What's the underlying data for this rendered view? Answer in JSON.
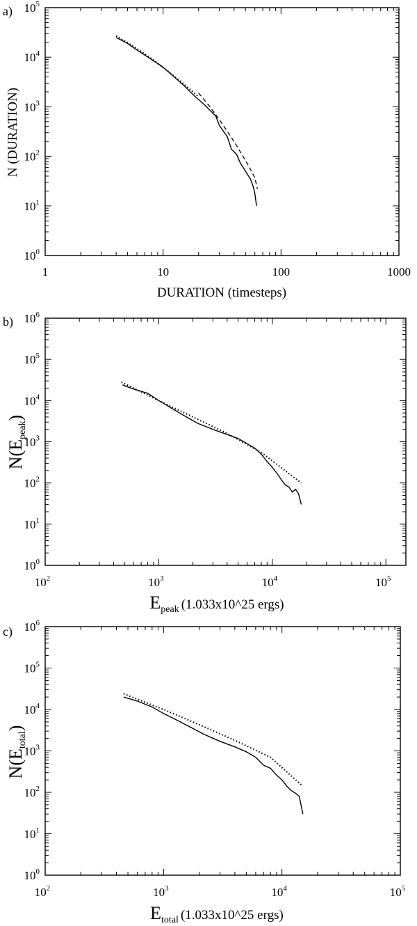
{
  "chart_data": [
    {
      "type": "line",
      "panel_label": "a)",
      "xscale": "log",
      "yscale": "log",
      "xlim": [
        1,
        1000
      ],
      "ylim": [
        1,
        100000
      ],
      "x_ticks": [
        1,
        10,
        100,
        1000
      ],
      "x_tick_labels": [
        "1",
        "10",
        "100",
        "1000"
      ],
      "y_tick_exponents": [
        "0",
        "1",
        "2",
        "3",
        "4",
        "5"
      ],
      "xlabel": "DURATION (timesteps)",
      "ylabel": "N (DURATION)",
      "series": [
        {
          "style": "solid",
          "x": [
            4,
            5,
            6,
            8,
            10,
            12,
            15,
            18,
            20,
            22,
            25,
            28,
            30,
            35,
            38,
            42,
            45,
            50,
            55,
            58,
            60,
            62
          ],
          "y": [
            25000,
            19000,
            14000,
            9000,
            6300,
            4300,
            2700,
            1750,
            1400,
            1150,
            850,
            650,
            420,
            250,
            140,
            110,
            75,
            50,
            35,
            25,
            18,
            10
          ]
        },
        {
          "style": "dotted",
          "x": [
            4,
            6,
            8,
            10,
            14,
            20
          ],
          "y": [
            27000,
            15000,
            9300,
            6200,
            3300,
            1600
          ]
        },
        {
          "style": "dashed",
          "x": [
            20,
            25,
            30,
            35,
            40,
            45,
            50,
            55,
            60,
            63
          ],
          "y": [
            1900,
            1000,
            550,
            320,
            200,
            125,
            82,
            55,
            37,
            22
          ]
        }
      ]
    },
    {
      "type": "line",
      "panel_label": "b)",
      "xscale": "log",
      "yscale": "log",
      "xlim": [
        100,
        150000
      ],
      "ylim": [
        1,
        1000000
      ],
      "x_tick_exponents": [
        "2",
        "3",
        "4",
        "5"
      ],
      "y_tick_exponents": [
        "0",
        "1",
        "2",
        "3",
        "4",
        "5",
        "6"
      ],
      "xlabel_base": "E",
      "xlabel_sub": "peak",
      "xlabel_units": "(1.033x10^25 ergs)",
      "ylabel_pre": "N(E",
      "ylabel_sub": "peak",
      "ylabel_post": ")",
      "series": [
        {
          "style": "solid",
          "x": [
            480,
            600,
            800,
            1000,
            1300,
            1700,
            2200,
            3000,
            4000,
            5000,
            6000,
            7000,
            8000,
            9000,
            10000,
            11000,
            12000,
            13000,
            14000,
            15000,
            16000,
            17000,
            18000
          ],
          "y": [
            24000,
            19000,
            15000,
            10000,
            6500,
            4200,
            2800,
            2000,
            1500,
            1200,
            900,
            700,
            500,
            330,
            240,
            170,
            120,
            90,
            80,
            60,
            70,
            55,
            30
          ]
        },
        {
          "style": "dotted",
          "x": [
            470,
            1000,
            2000,
            4000,
            8000,
            18000
          ],
          "y": [
            28000,
            10000,
            4000,
            1600,
            550,
            100
          ]
        }
      ]
    },
    {
      "type": "line",
      "panel_label": "c)",
      "xscale": "log",
      "yscale": "log",
      "xlim": [
        100,
        100000
      ],
      "ylim": [
        1,
        1000000
      ],
      "x_tick_exponents": [
        "2",
        "3",
        "4",
        "5"
      ],
      "y_tick_exponents": [
        "0",
        "1",
        "2",
        "3",
        "4",
        "5",
        "6"
      ],
      "xlabel_base": "E",
      "xlabel_sub": "total",
      "xlabel_units": "(1.033x10^25 ergs)",
      "ylabel_pre": "N(E",
      "ylabel_sub": "total",
      "ylabel_post": ")",
      "series": [
        {
          "style": "solid",
          "x": [
            460,
            600,
            800,
            1000,
            1300,
            1700,
            2200,
            3000,
            4000,
            5000,
            6000,
            7000,
            8000,
            9000,
            10000,
            11000,
            12000,
            13000,
            14000,
            15000
          ],
          "y": [
            20000,
            16000,
            11500,
            8000,
            5500,
            3700,
            2500,
            1700,
            1250,
            950,
            700,
            450,
            380,
            260,
            200,
            140,
            110,
            95,
            80,
            30
          ]
        },
        {
          "style": "dotted",
          "x": [
            460,
            1000,
            2000,
            4000,
            8000,
            15000
          ],
          "y": [
            24000,
            10000,
            4300,
            1800,
            700,
            140
          ]
        }
      ]
    }
  ]
}
